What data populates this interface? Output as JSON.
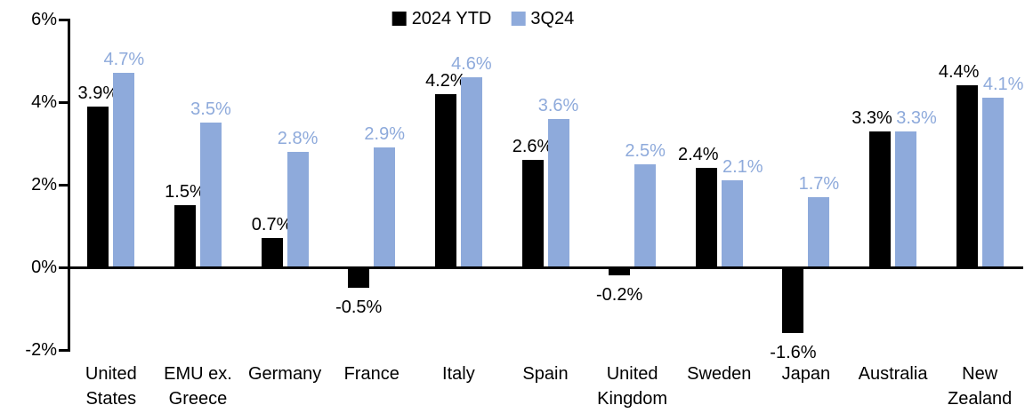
{
  "chart_data": {
    "type": "bar",
    "title": "",
    "categories": [
      "United States",
      "EMU ex. Greece",
      "Germany",
      "France",
      "Italy",
      "Spain",
      "United Kingdom",
      "Sweden",
      "Japan",
      "Australia",
      "New Zealand"
    ],
    "series": [
      {
        "name": "2024 YTD",
        "color": "#000000",
        "values": [
          3.9,
          1.5,
          0.7,
          -0.5,
          4.2,
          2.6,
          -0.2,
          2.4,
          -1.6,
          3.3,
          4.4
        ]
      },
      {
        "name": "3Q24",
        "color": "#8EAADB",
        "values": [
          4.7,
          3.5,
          2.8,
          2.9,
          4.6,
          3.6,
          2.5,
          2.1,
          1.7,
          3.3,
          4.1
        ]
      }
    ],
    "data_labels": [
      "3.9%",
      "1.5%",
      "0.7%",
      "-0.5%",
      "4.2%",
      "2.6%",
      "-0.2%",
      "2.4%",
      "-1.6%",
      "3.3%",
      "4.4%",
      "4.7%",
      "3.5%",
      "2.8%",
      "2.9%",
      "4.6%",
      "3.6%",
      "2.5%",
      "2.1%",
      "1.7%",
      "3.3%",
      "4.1%"
    ],
    "xlabel": "",
    "ylabel": "",
    "y_axis": {
      "min": -2,
      "max": 6,
      "tick_step": 2,
      "tick_values": [
        6,
        4,
        2,
        0,
        -2
      ],
      "tick_labels": [
        "6%",
        "4%",
        "2%",
        "0%",
        "-2%"
      ],
      "format": "percent"
    },
    "legend_position": "top-center",
    "grid": false,
    "colors": {
      "series_2024_ytd": "#000000",
      "series_3q24": "#8EAADB",
      "axis": "#000000",
      "background": "#FFFFFF"
    }
  }
}
